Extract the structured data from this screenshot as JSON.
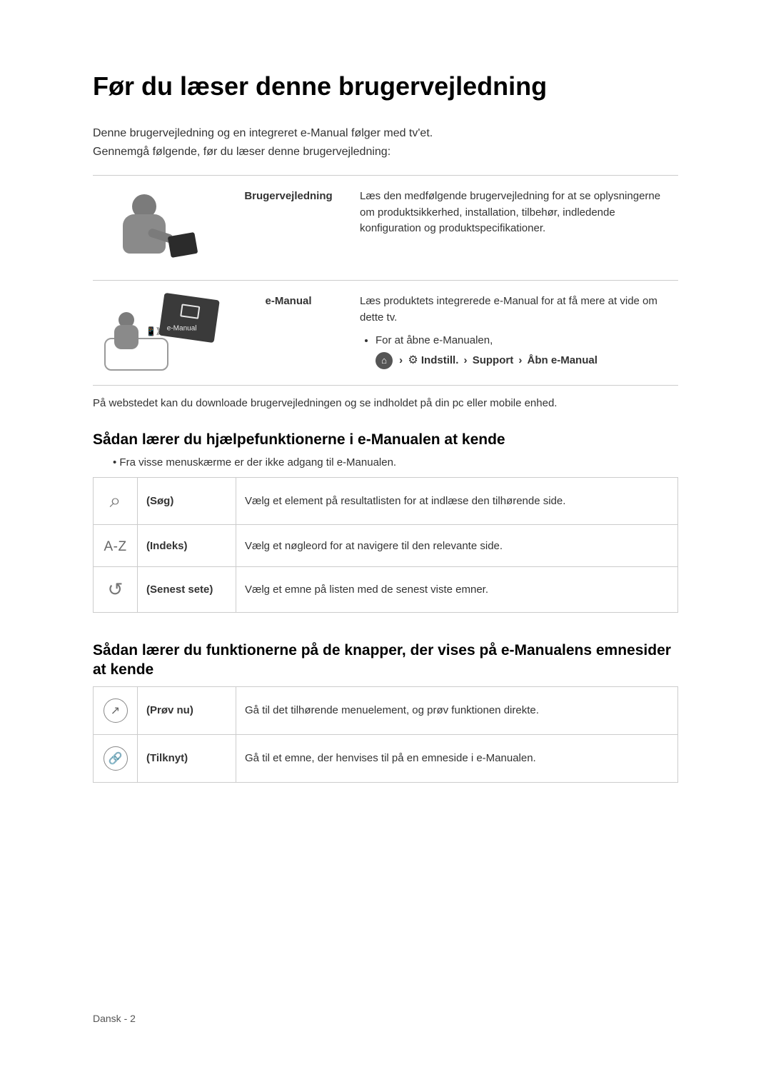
{
  "page": {
    "title": "Før du læser denne brugervejledning",
    "intro_line1": "Denne brugervejledning og en integreret e-Manual følger med tv'et.",
    "intro_line2": "Gennemgå følgende, før du læser denne brugervejledning:",
    "subnote": "På webstedet kan du downloade brugervejledningen og se indholdet på din pc eller mobile enhed.",
    "footer": "Dansk - 2"
  },
  "guide_rows": [
    {
      "label": "Brugervejledning",
      "desc": "Læs den medfølgende brugervejledning for at se oplysningerne om produktsikkerhed, installation, tilbehør, indledende konfiguration og produktspecifikationer."
    },
    {
      "label": "e-Manual",
      "desc": "Læs produktets integrerede e-Manual for at få mere at vide om dette tv.",
      "bullet": "For at åbne e-Manualen,",
      "path": {
        "home_glyph": "⌂",
        "gear_glyph": "⚙",
        "seg1": "Indstill.",
        "seg2": "Support",
        "seg3": "Åbn e-Manual",
        "arrow": "›"
      },
      "tv_label": "e-Manual"
    }
  ],
  "section2": {
    "heading": "Sådan lærer du hjælpefunktionerne i e-Manualen at kende",
    "note": "•  Fra visse menuskærme er der ikke adgang til e-Manualen.",
    "rows": [
      {
        "icon_type": "search",
        "icon_glyph": "⌕",
        "name": "(Søg)",
        "desc": "Vælg et element på resultatlisten for at indlæse den tilhørende side."
      },
      {
        "icon_type": "az",
        "icon_glyph": "A-Z",
        "name": "(Indeks)",
        "desc": "Vælg et nøgleord for at navigere til den relevante side."
      },
      {
        "icon_type": "recent",
        "icon_glyph": "↺",
        "name": "(Senest sete)",
        "desc": "Vælg et emne på listen med de senest viste emner."
      }
    ]
  },
  "section3": {
    "heading": "Sådan lærer du funktionerne på de knapper, der vises på e-Manualens emnesider at kende",
    "rows": [
      {
        "icon_glyph": "↗",
        "name": "(Prøv nu)",
        "desc": "Gå til det tilhørende menuelement, og prøv funktionen direkte."
      },
      {
        "icon_glyph": "🔗",
        "name": "(Tilknyt)",
        "desc": "Gå til et emne, der henvises til på en emneside i e-Manualen."
      }
    ]
  },
  "styles": {
    "text_color": "#333333",
    "heading_color": "#000000",
    "border_color": "#cccccc",
    "icon_color": "#777777"
  }
}
